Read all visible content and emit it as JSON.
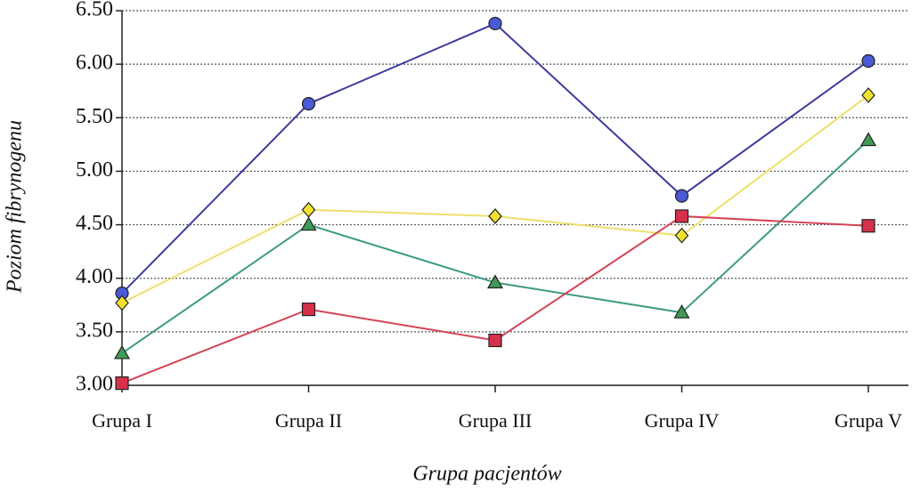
{
  "chart_data": {
    "type": "line",
    "x_label": "Grupa pacjentów",
    "y_label": "Poziom fibrynogenu",
    "categories": [
      "Grupa I",
      "Grupa II",
      "Grupa III",
      "Grupa IV",
      "Grupa V"
    ],
    "series": [
      {
        "color": "#3c3c9c",
        "marker_color": "#4a5ad4",
        "marker": "circle",
        "values": [
          3.86,
          5.63,
          6.38,
          4.77,
          6.03
        ]
      },
      {
        "color": "#ece06a",
        "marker_color": "#f2e230",
        "marker": "diamond",
        "values": [
          3.77,
          4.64,
          4.58,
          4.4,
          5.71
        ]
      },
      {
        "color": "#3e9a84",
        "marker_color": "#3f9a55",
        "marker": "triangle",
        "values": [
          3.3,
          4.5,
          3.96,
          3.68,
          5.29
        ]
      },
      {
        "color": "#d24456",
        "marker_color": "#d6304c",
        "marker": "square",
        "values": [
          3.02,
          3.71,
          3.42,
          4.58,
          4.49
        ]
      }
    ],
    "ylim": [
      3.0,
      6.5
    ],
    "yticks": [
      {
        "value": 3.0,
        "label": "3.00"
      },
      {
        "value": 3.5,
        "label": "3.50"
      },
      {
        "value": 4.0,
        "label": "4.00"
      },
      {
        "value": 4.5,
        "label": "4.50"
      },
      {
        "value": 5.0,
        "label": "5.00"
      },
      {
        "value": 5.5,
        "label": "5.50"
      },
      {
        "value": 6.0,
        "label": "6.00"
      },
      {
        "value": 6.5,
        "label": "6.50"
      }
    ],
    "grid": true
  }
}
